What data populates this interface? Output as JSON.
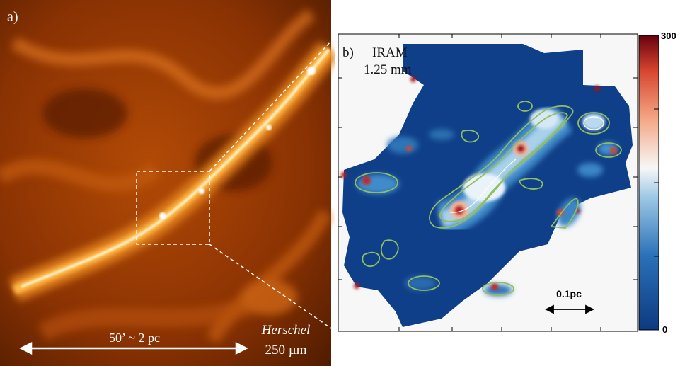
{
  "panel_a": {
    "label": "a)",
    "scale_text": "50’ ~ 2 pc",
    "telescope": "Herschel",
    "band": "250 µm"
  },
  "panel_b": {
    "label": "b)",
    "instrument": "IRAM",
    "band": "1.25 mm",
    "scale_bar": "0.1pc"
  },
  "colorbar": {
    "max_label": "300",
    "min_label": "0"
  },
  "colors": {
    "herschel_dark": "#3a1400",
    "herschel_mid": "#c4560a",
    "herschel_bright": "#fff2c8",
    "map_low": "#0f3f88",
    "map_high": "#a50f15",
    "contour": "#8fbf60"
  }
}
